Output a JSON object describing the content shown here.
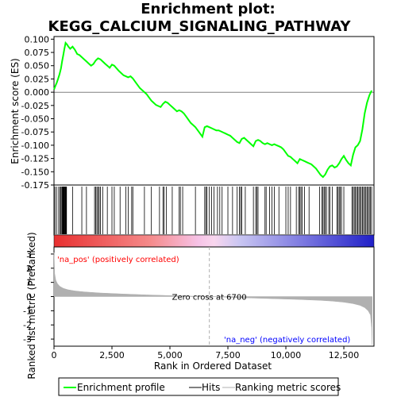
{
  "title_line1": "Enrichment plot:",
  "title_line2": "KEGG_CALCIUM_SIGNALING_PATHWAY",
  "colors": {
    "es_line": "#00ff00",
    "hits": "#000000",
    "metric": "#b0b0b0",
    "pos_label": "#ff0000",
    "neg_label": "#0000ff",
    "zero_line": "#000000",
    "zero_cross_line": "#b0b0b0"
  },
  "chart_data": [
    {
      "type": "line",
      "ylabel": "Enrichment score (ES)",
      "ylim": [
        -0.175,
        0.105
      ],
      "xlim": [
        0,
        13800
      ],
      "yticks": [
        0.1,
        0.075,
        0.05,
        0.025,
        0.0,
        -0.025,
        -0.05,
        -0.075,
        -0.1,
        -0.125,
        -0.15,
        -0.175
      ],
      "ytick_labels": [
        "0.100",
        "0.075",
        "0.050",
        "0.025",
        "0.000",
        "-0.025",
        "-0.050",
        "-0.075",
        "-0.100",
        "-0.125",
        "-0.150",
        "-0.175"
      ],
      "series": [
        {
          "name": "Enrichment profile",
          "x": [
            0,
            60,
            120,
            180,
            240,
            300,
            350,
            400,
            450,
            500,
            560,
            620,
            700,
            800,
            900,
            1000,
            1100,
            1200,
            1300,
            1400,
            1500,
            1600,
            1700,
            1800,
            1900,
            2000,
            2100,
            2200,
            2300,
            2400,
            2500,
            2600,
            2700,
            2800,
            2900,
            3000,
            3100,
            3200,
            3300,
            3400,
            3500,
            3600,
            3700,
            3800,
            3900,
            4000,
            4100,
            4200,
            4300,
            4400,
            4500,
            4600,
            4700,
            4800,
            4900,
            5000,
            5100,
            5200,
            5300,
            5400,
            5500,
            5600,
            5700,
            5800,
            5900,
            6000,
            6100,
            6200,
            6300,
            6400,
            6500,
            6600,
            6700,
            6800,
            6900,
            7000,
            7100,
            7200,
            7300,
            7400,
            7500,
            7600,
            7700,
            7800,
            7900,
            8000,
            8100,
            8200,
            8300,
            8400,
            8500,
            8600,
            8700,
            8800,
            8900,
            9000,
            9100,
            9200,
            9300,
            9400,
            9500,
            9600,
            9700,
            9800,
            9900,
            10000,
            10100,
            10200,
            10300,
            10400,
            10500,
            10600,
            10700,
            10800,
            10900,
            11000,
            11100,
            11200,
            11300,
            11400,
            11500,
            11600,
            11700,
            11800,
            11900,
            12000,
            12100,
            12200,
            12300,
            12400,
            12500,
            12600,
            12700,
            12800,
            12900,
            13000,
            13100,
            13200,
            13300,
            13400,
            13500,
            13600,
            13700
          ],
          "y": [
            0.005,
            0.012,
            0.018,
            0.026,
            0.034,
            0.045,
            0.058,
            0.07,
            0.082,
            0.093,
            0.09,
            0.086,
            0.082,
            0.086,
            0.08,
            0.072,
            0.07,
            0.066,
            0.062,
            0.058,
            0.054,
            0.05,
            0.053,
            0.06,
            0.064,
            0.062,
            0.058,
            0.054,
            0.05,
            0.046,
            0.052,
            0.05,
            0.045,
            0.04,
            0.036,
            0.032,
            0.03,
            0.028,
            0.03,
            0.026,
            0.02,
            0.014,
            0.008,
            0.004,
            0.0,
            -0.004,
            -0.01,
            -0.016,
            -0.02,
            -0.024,
            -0.026,
            -0.028,
            -0.022,
            -0.018,
            -0.02,
            -0.024,
            -0.028,
            -0.032,
            -0.036,
            -0.034,
            -0.036,
            -0.04,
            -0.046,
            -0.052,
            -0.058,
            -0.062,
            -0.066,
            -0.072,
            -0.078,
            -0.084,
            -0.066,
            -0.064,
            -0.066,
            -0.068,
            -0.07,
            -0.072,
            -0.072,
            -0.074,
            -0.076,
            -0.078,
            -0.08,
            -0.082,
            -0.086,
            -0.09,
            -0.094,
            -0.096,
            -0.088,
            -0.086,
            -0.09,
            -0.094,
            -0.098,
            -0.102,
            -0.092,
            -0.09,
            -0.092,
            -0.096,
            -0.098,
            -0.096,
            -0.098,
            -0.1,
            -0.098,
            -0.1,
            -0.102,
            -0.104,
            -0.108,
            -0.114,
            -0.12,
            -0.122,
            -0.126,
            -0.13,
            -0.134,
            -0.126,
            -0.128,
            -0.13,
            -0.132,
            -0.134,
            -0.136,
            -0.14,
            -0.144,
            -0.15,
            -0.156,
            -0.16,
            -0.155,
            -0.146,
            -0.14,
            -0.138,
            -0.142,
            -0.14,
            -0.134,
            -0.126,
            -0.12,
            -0.128,
            -0.134,
            -0.138,
            -0.118,
            -0.104,
            -0.1,
            -0.092,
            -0.07,
            -0.04,
            -0.02,
            -0.006,
            0.003
          ]
        }
      ]
    },
    {
      "type": "scatter",
      "series_name": "Hits",
      "x": [
        40,
        110,
        200,
        260,
        300,
        340,
        360,
        380,
        400,
        420,
        440,
        460,
        480,
        500,
        520,
        540,
        800,
        1200,
        1400,
        1750,
        1800,
        1850,
        1900,
        1950,
        2000,
        2100,
        2300,
        2500,
        2600,
        2850,
        3100,
        3200,
        3350,
        3400,
        3900,
        4200,
        4550,
        4700,
        4750,
        4850,
        5100,
        5400,
        5450,
        5550,
        6100,
        6500,
        6550,
        6600,
        6700,
        6800,
        6900,
        7050,
        7150,
        7250,
        7500,
        7700,
        7900,
        8000,
        8050,
        8100,
        8250,
        8600,
        8700,
        8750,
        8800,
        9100,
        9150,
        9300,
        9400,
        9500,
        9700,
        10000,
        10100,
        10200,
        10450,
        10550,
        10600,
        10650,
        10700,
        10800,
        11000,
        11450,
        11550,
        11600,
        11650,
        11700,
        11750,
        11850,
        11900,
        12000,
        12200,
        12250,
        12300,
        12350,
        12400,
        12500,
        12850,
        12900,
        12950,
        13000,
        13050,
        13100,
        13150,
        13200,
        13250,
        13300,
        13350,
        13400,
        13450,
        13500,
        13550,
        13600,
        13650,
        13700
      ]
    },
    {
      "type": "area",
      "ylabel": "Ranked list metric (PreRanked)",
      "xlabel": "Rank in Ordered Dataset",
      "ylim": [
        -3.5,
        3.5
      ],
      "xlim": [
        0,
        13800
      ],
      "yticks": [
        3,
        2,
        1,
        0,
        -1,
        -2,
        -3
      ],
      "ytick_labels": [
        "3",
        "2",
        "1",
        "0",
        "-1",
        "-2",
        "-3"
      ],
      "xticks": [
        0,
        2500,
        5000,
        7500,
        10000,
        12500
      ],
      "xtick_labels": [
        "0",
        "2,500",
        "5,000",
        "7,500",
        "10,000",
        "12,500"
      ],
      "series": [
        {
          "name": "Ranking metric scores",
          "x": [
            0,
            30,
            80,
            150,
            250,
            400,
            600,
            900,
            1300,
            2000,
            3000,
            4000,
            5000,
            6000,
            6700,
            7500,
            8500,
            9500,
            10500,
            11500,
            12000,
            12500,
            12900,
            13200,
            13400,
            13550,
            13650,
            13700,
            13720
          ],
          "y": [
            3.1,
            1.6,
            1.15,
            0.9,
            0.72,
            0.58,
            0.48,
            0.4,
            0.33,
            0.25,
            0.18,
            0.12,
            0.07,
            0.03,
            0.0,
            -0.05,
            -0.1,
            -0.15,
            -0.2,
            -0.27,
            -0.32,
            -0.4,
            -0.5,
            -0.62,
            -0.78,
            -1.0,
            -1.3,
            -2.2,
            -3.4
          ]
        }
      ],
      "zero_cross": 6700,
      "zero_cross_text": "Zero cross at 6700",
      "pos_label": "'na_pos' (positively correlated)",
      "neg_label": "'na_neg' (negatively correlated)"
    }
  ],
  "legend": {
    "items": [
      {
        "label": "Enrichment profile",
        "kind": "es"
      },
      {
        "label": "Hits",
        "kind": "hits"
      },
      {
        "label": "Ranking metric scores",
        "kind": "metric"
      }
    ]
  }
}
